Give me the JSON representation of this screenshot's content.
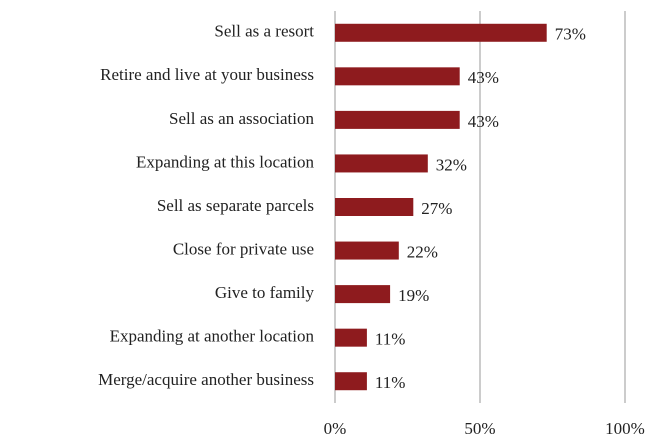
{
  "chart_data": {
    "type": "bar",
    "orientation": "horizontal",
    "categories": [
      "Sell as a resort",
      "Retire and live at your business",
      "Sell as an association",
      "Expanding at this location",
      "Sell as separate parcels",
      "Close for private use",
      "Give to family",
      "Expanding at another location",
      "Merge/acquire another business"
    ],
    "values": [
      73,
      43,
      43,
      32,
      27,
      22,
      19,
      11,
      11
    ],
    "value_labels": [
      "73%",
      "43%",
      "43%",
      "32%",
      "27%",
      "22%",
      "19%",
      "11%",
      "11%"
    ],
    "color": "#8e1b1e",
    "xlim": [
      0,
      100
    ],
    "xticks": [
      {
        "value": 0,
        "label": "0%"
      },
      {
        "value": 50,
        "label": "50%"
      },
      {
        "value": 100,
        "label": "100%"
      }
    ],
    "grid": true
  }
}
